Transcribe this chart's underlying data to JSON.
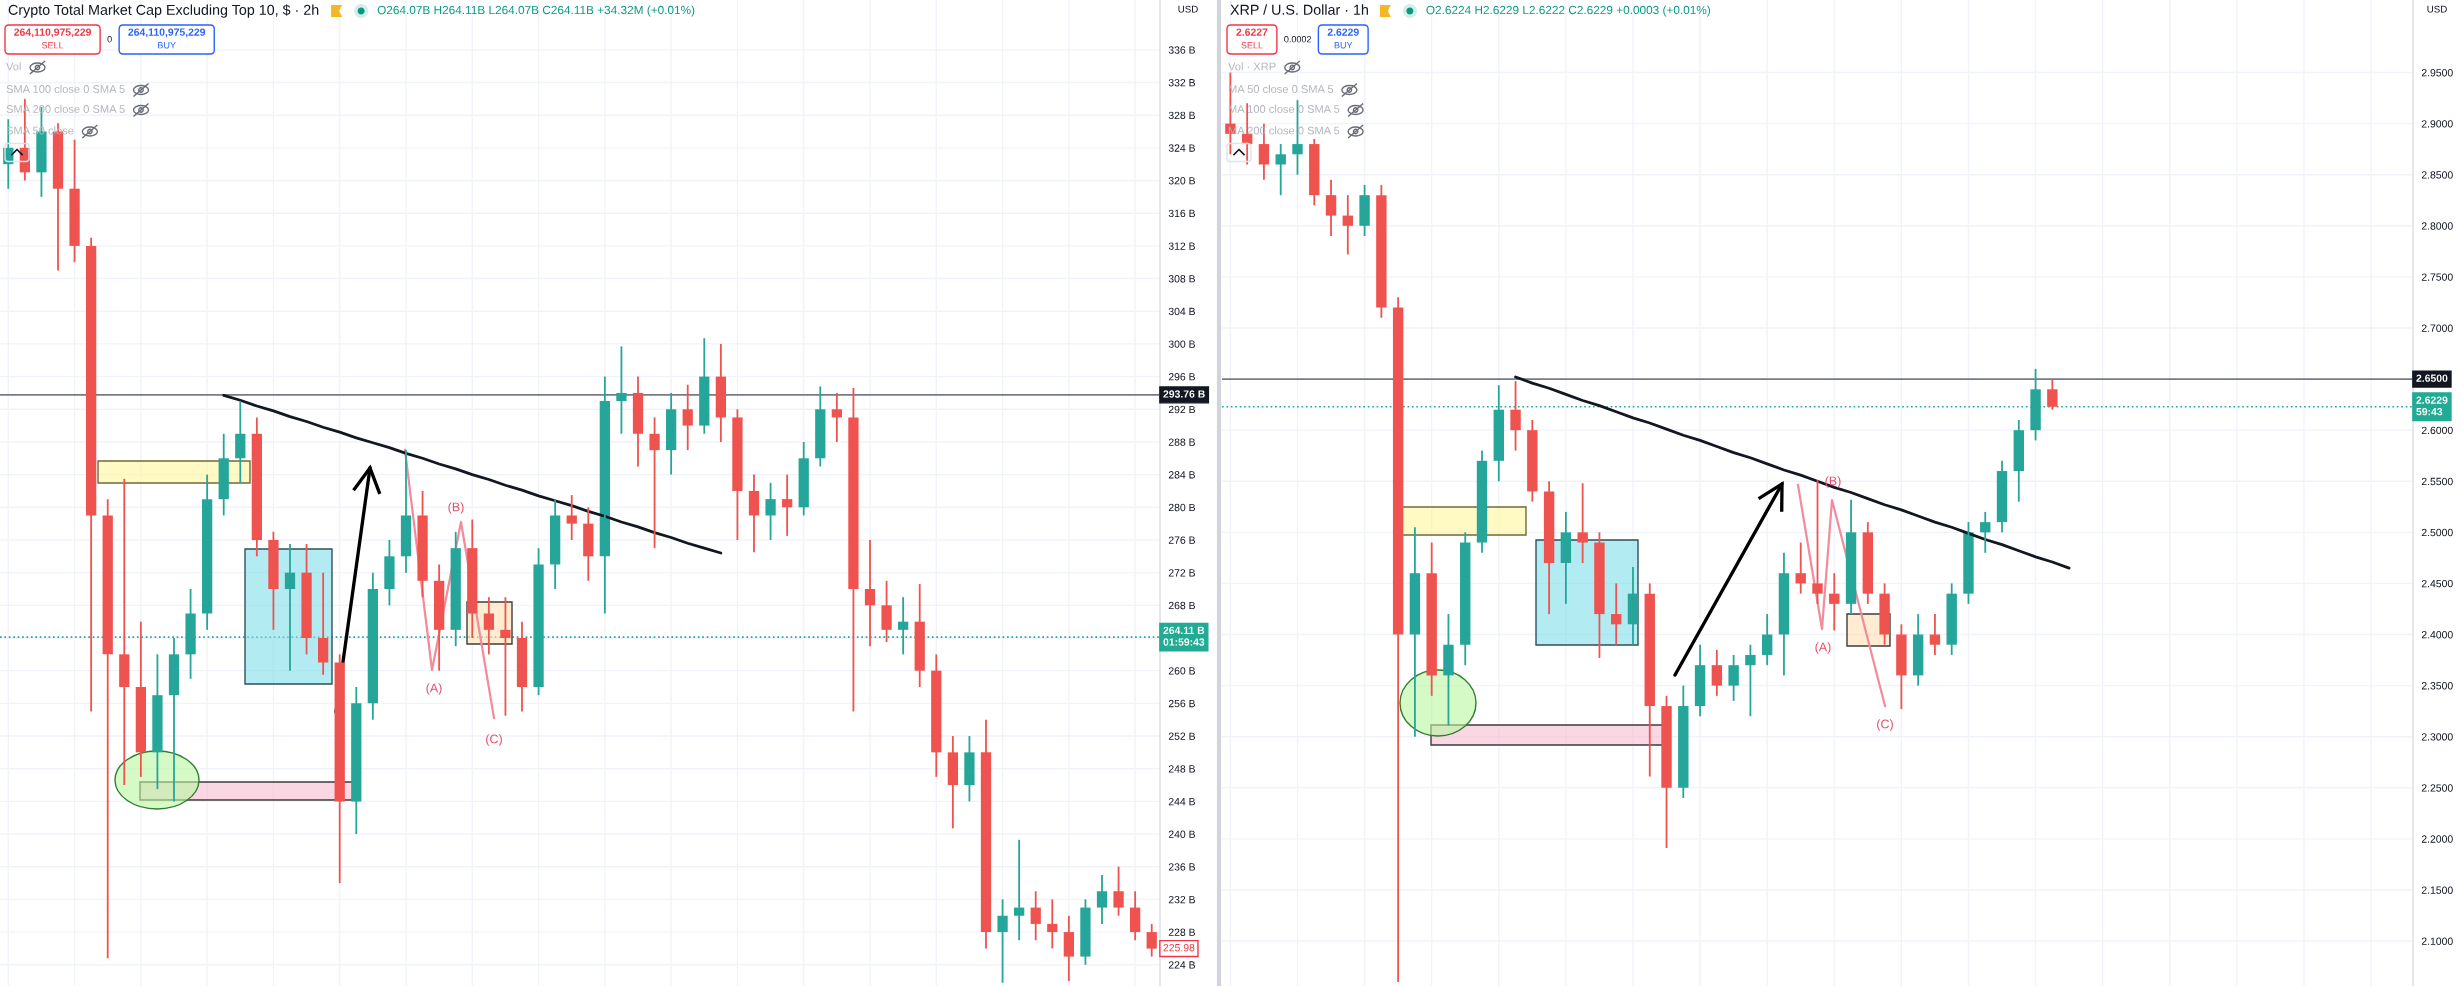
{
  "chart_data": [
    {
      "type": "candlestick",
      "title": "Crypto Total Market Cap Excluding Top 10, $ · 2h",
      "subtitle": "O264.07B H264.11B L264.07B C264.11B +34.32M (+0.01%)",
      "categories": [
        null,
        null,
        null,
        null,
        null,
        null,
        null,
        null,
        null,
        null,
        null,
        null,
        null,
        null,
        null,
        null,
        null,
        null,
        null,
        null,
        null,
        null,
        null,
        null,
        null,
        null,
        null,
        null,
        null,
        null,
        null,
        null,
        null,
        null,
        null,
        null,
        null,
        null,
        null,
        null,
        null,
        null,
        null,
        null,
        null,
        null,
        null,
        null,
        null,
        null,
        null,
        null,
        null,
        null,
        null,
        null,
        null,
        null,
        null,
        null,
        null,
        null,
        null,
        null,
        null,
        null,
        null,
        null,
        null,
        null
      ],
      "ohlc": [
        [
          322,
          327.5,
          319,
          324
        ],
        [
          324,
          330,
          320,
          321
        ],
        [
          321,
          329,
          318,
          326
        ],
        [
          326,
          327,
          309,
          319
        ],
        [
          319,
          325,
          310,
          312
        ],
        [
          312,
          313,
          255,
          279
        ],
        [
          279,
          281,
          224.8,
          262
        ],
        [
          262,
          283.5,
          246,
          258
        ],
        [
          258,
          266,
          247,
          250
        ],
        [
          250,
          262,
          245.5,
          257
        ],
        [
          257,
          264,
          244,
          262
        ],
        [
          262,
          270,
          259,
          267
        ],
        [
          267,
          284,
          265,
          281
        ],
        [
          281,
          289,
          279,
          286
        ],
        [
          286,
          293,
          283,
          289
        ],
        [
          289,
          291,
          274,
          276
        ],
        [
          276,
          277,
          265,
          270
        ],
        [
          270,
          275.5,
          260,
          272
        ],
        [
          272,
          275.5,
          262,
          264
        ],
        [
          264,
          272,
          259.5,
          261
        ],
        [
          261,
          262,
          234,
          244
        ],
        [
          244,
          258,
          240,
          256
        ],
        [
          256,
          272,
          254,
          270
        ],
        [
          270,
          276,
          268,
          274
        ],
        [
          274,
          287,
          272,
          279
        ],
        [
          279,
          282,
          269,
          271
        ],
        [
          271,
          273,
          260,
          265
        ],
        [
          265,
          277,
          263,
          275
        ],
        [
          275,
          278.5,
          264,
          267
        ],
        [
          267,
          269,
          262,
          265
        ],
        [
          265,
          269,
          254.5,
          264
        ],
        [
          264,
          266,
          255,
          258
        ],
        [
          258,
          275,
          257,
          273
        ],
        [
          273,
          281,
          270,
          279
        ],
        [
          279,
          281.5,
          276,
          278
        ],
        [
          278,
          280,
          271,
          274
        ],
        [
          274,
          296,
          267,
          293
        ],
        [
          293,
          299.7,
          289,
          294
        ],
        [
          294,
          296,
          285,
          289
        ],
        [
          289,
          291,
          275,
          287
        ],
        [
          287,
          294,
          284,
          292
        ],
        [
          292,
          295,
          287,
          290
        ],
        [
          290,
          300.7,
          289,
          296
        ],
        [
          296,
          300,
          288,
          291
        ],
        [
          291,
          292,
          276,
          282
        ],
        [
          282,
          284,
          274.5,
          279
        ],
        [
          279,
          283,
          276,
          281
        ],
        [
          281,
          284,
          276.5,
          280
        ],
        [
          280,
          288,
          279,
          286
        ],
        [
          286,
          294.8,
          285,
          292
        ],
        [
          292,
          294,
          288,
          291
        ],
        [
          291,
          294.6,
          255,
          270
        ],
        [
          270,
          276,
          263,
          268
        ],
        [
          268,
          271,
          263.5,
          265
        ],
        [
          265,
          269,
          262,
          266
        ],
        [
          266,
          270.6,
          258,
          260
        ],
        [
          260,
          262,
          247,
          250
        ],
        [
          250,
          252,
          240.7,
          246
        ],
        [
          246,
          252,
          244,
          250
        ],
        [
          250,
          254,
          226,
          228
        ],
        [
          228,
          232,
          221.8,
          230
        ],
        [
          230,
          239.3,
          227,
          231
        ],
        [
          231,
          233,
          227,
          229
        ],
        [
          229,
          232,
          226,
          228
        ],
        [
          228,
          230,
          222,
          225
        ],
        [
          225,
          232,
          224,
          231
        ],
        [
          231,
          235,
          229,
          233
        ],
        [
          233,
          236,
          230,
          231
        ],
        [
          231,
          233,
          227,
          228
        ],
        [
          228,
          229,
          225,
          225.98
        ]
      ],
      "colors": [
        "#26a69a",
        "#ef5350",
        "#26a69a",
        "#ef5350",
        "#ef5350",
        "#ef5350",
        "#ef5350",
        "#ef5350",
        "#ef5350",
        "#26a69a",
        "#26a69a",
        "#26a69a",
        "#26a69a",
        "#26a69a",
        "#26a69a",
        "#ef5350",
        "#ef5350",
        "#26a69a",
        "#ef5350",
        "#ef5350",
        "#ef5350",
        "#26a69a",
        "#26a69a",
        "#26a69a",
        "#26a69a",
        "#ef5350",
        "#ef5350",
        "#26a69a",
        "#ef5350",
        "#ef5350",
        "#ef5350",
        "#ef5350",
        "#26a69a",
        "#26a69a",
        "#ef5350",
        "#ef5350",
        "#26a69a",
        "#26a69a",
        "#ef5350",
        "#ef5350",
        "#26a69a",
        "#ef5350",
        "#26a69a",
        "#ef5350",
        "#ef5350",
        "#ef5350",
        "#26a69a",
        "#ef5350",
        "#26a69a",
        "#26a69a",
        "#ef5350",
        "#ef5350",
        "#ef5350",
        "#ef5350",
        "#26a69a",
        "#ef5350",
        "#ef5350",
        "#ef5350",
        "#26a69a",
        "#ef5350",
        "#26a69a",
        "#26a69a",
        "#ef5350",
        "#ef5350",
        "#ef5350",
        "#26a69a",
        "#26a69a",
        "#ef5350",
        "#ef5350",
        "#ef5350"
      ],
      "series": [
        {
          "type": "line",
          "color": "#131722",
          "values": [
            null,
            null,
            null,
            null,
            null,
            null,
            null,
            null,
            null,
            null,
            null,
            null,
            null,
            293.7,
            293.1,
            292.4,
            291.8,
            291.1,
            290.5,
            289.8,
            289.2,
            288.5,
            287.9,
            287.3,
            286.6,
            286.0,
            285.3,
            284.7,
            284.0,
            283.4,
            282.7,
            282.1,
            281.4,
            280.8,
            280.2,
            279.5,
            278.9,
            278.2,
            277.6,
            276.9,
            276.3,
            275.6,
            275.0,
            274.4,
            null,
            null,
            null,
            null,
            null,
            null,
            null,
            null,
            null,
            null,
            null,
            null,
            null,
            null,
            null,
            null,
            null,
            null,
            null,
            null,
            null,
            null,
            null,
            null,
            null,
            null
          ]
        }
      ],
      "ylim": [
        221.4,
        342.1
      ],
      "yticks": [
        {
          "value": 224,
          "label": "224 B"
        },
        {
          "value": 228,
          "label": "228 B"
        },
        {
          "value": 232,
          "label": "232 B"
        },
        {
          "value": 236,
          "label": "236 B"
        },
        {
          "value": 240,
          "label": "240 B"
        },
        {
          "value": 244,
          "label": "244 B"
        },
        {
          "value": 248,
          "label": "248 B"
        },
        {
          "value": 252,
          "label": "252 B"
        },
        {
          "value": 256,
          "label": "256 B"
        },
        {
          "value": 260,
          "label": "260 B"
        },
        {
          "value": 264,
          "label": null
        },
        {
          "value": 268,
          "label": "268 B"
        },
        {
          "value": 272,
          "label": "272 B"
        },
        {
          "value": 276,
          "label": "276 B"
        },
        {
          "value": 280,
          "label": "280 B"
        },
        {
          "value": 284,
          "label": "284 B"
        },
        {
          "value": 288,
          "label": "288 B"
        },
        {
          "value": 292,
          "label": "292 B"
        },
        {
          "value": 296,
          "label": "296 B"
        },
        {
          "value": 300,
          "label": "300 B"
        },
        {
          "value": 304,
          "label": "304 B"
        },
        {
          "value": 308,
          "label": "308 B"
        },
        {
          "value": 312,
          "label": "312 B"
        },
        {
          "value": 316,
          "label": "316 B"
        },
        {
          "value": 320,
          "label": "320 B"
        },
        {
          "value": 324,
          "label": "324 B"
        },
        {
          "value": 328,
          "label": "328 B"
        },
        {
          "value": 332,
          "label": "332 B"
        },
        {
          "value": 336,
          "label": "336 B"
        }
      ],
      "grid": true,
      "tick_labels": "y",
      "ref_lines": [
        {
          "axis": "y",
          "value": 293.76,
          "label": "293.76 B",
          "color": "#787b86",
          "line_style": "solid"
        },
        {
          "axis": "y",
          "value": 264.11,
          "label": "264.11 B\n01:59:43",
          "color": "#22ab94",
          "line_style": "dotted"
        }
      ],
      "annotations": [
        "264,110,975,229",
        "SELL",
        "0",
        "264,110,975,229",
        "BUY",
        "Vol",
        "SMA 100 close 0 SMA 5",
        "SMA 200 close 0 SMA 5",
        "SMA 50 close",
        "USD",
        "(A)",
        "(B)",
        "(C)",
        {
          "text": "225.98",
          "y": 225.98
        }
      ]
    },
    {
      "type": "candlestick",
      "title": "XRP / U.S. Dollar · 1h",
      "subtitle": "O2.6224 H2.6229 L2.6222 C2.6229 +0.0003 (+0.01%)",
      "categories": [
        null,
        null,
        null,
        null,
        null,
        null,
        null,
        null,
        null,
        null,
        null,
        null,
        null,
        null,
        null,
        null,
        null,
        null,
        null,
        null,
        null,
        null,
        null,
        null,
        null,
        null,
        null,
        null,
        null,
        null,
        null,
        null,
        null,
        null,
        null,
        null,
        null,
        null,
        null,
        null,
        null,
        null,
        null,
        null,
        null,
        null,
        null,
        null,
        null,
        null,
        null,
        null,
        null,
        null,
        null,
        null,
        null,
        null,
        null,
        null,
        null,
        null,
        null,
        null,
        null,
        null,
        null,
        null,
        null,
        null,
        null
      ],
      "ohlc": [
        [
          2.9,
          2.95,
          2.87,
          2.89
        ],
        [
          2.89,
          2.92,
          2.86,
          2.88
        ],
        [
          2.88,
          2.9,
          2.845,
          2.86
        ],
        [
          2.86,
          2.88,
          2.83,
          2.87
        ],
        [
          2.87,
          2.923,
          2.85,
          2.88
        ],
        [
          2.88,
          2.885,
          2.82,
          2.83
        ],
        [
          2.83,
          2.845,
          2.79,
          2.81
        ],
        [
          2.81,
          2.83,
          2.772,
          2.8
        ],
        [
          2.8,
          2.84,
          2.79,
          2.83
        ],
        [
          2.83,
          2.84,
          2.71,
          2.72
        ],
        [
          2.72,
          2.73,
          2.06,
          2.4
        ],
        [
          2.4,
          2.505,
          2.3,
          2.46
        ],
        [
          2.46,
          2.49,
          2.34,
          2.36
        ],
        [
          2.36,
          2.42,
          2.311,
          2.39
        ],
        [
          2.39,
          2.5,
          2.37,
          2.49
        ],
        [
          2.49,
          2.58,
          2.48,
          2.57
        ],
        [
          2.57,
          2.644,
          2.55,
          2.62
        ],
        [
          2.62,
          2.648,
          2.58,
          2.6
        ],
        [
          2.6,
          2.61,
          2.53,
          2.54
        ],
        [
          2.54,
          2.55,
          2.42,
          2.47
        ],
        [
          2.47,
          2.52,
          2.43,
          2.5
        ],
        [
          2.5,
          2.548,
          2.47,
          2.49
        ],
        [
          2.49,
          2.5,
          2.377,
          2.42
        ],
        [
          2.42,
          2.45,
          2.39,
          2.41
        ],
        [
          2.41,
          2.466,
          2.39,
          2.44
        ],
        [
          2.44,
          2.45,
          2.261,
          2.33
        ],
        [
          2.33,
          2.34,
          2.191,
          2.25
        ],
        [
          2.25,
          2.35,
          2.24,
          2.33
        ],
        [
          2.33,
          2.39,
          2.32,
          2.37
        ],
        [
          2.37,
          2.385,
          2.34,
          2.35
        ],
        [
          2.35,
          2.38,
          2.335,
          2.37
        ],
        [
          2.37,
          2.39,
          2.32,
          2.38
        ],
        [
          2.38,
          2.42,
          2.37,
          2.4
        ],
        [
          2.4,
          2.48,
          2.36,
          2.46
        ],
        [
          2.46,
          2.49,
          2.44,
          2.45
        ],
        [
          2.45,
          2.551,
          2.43,
          2.44
        ],
        [
          2.44,
          2.46,
          2.404,
          2.43
        ],
        [
          2.43,
          2.532,
          2.42,
          2.5
        ],
        [
          2.5,
          2.51,
          2.43,
          2.44
        ],
        [
          2.44,
          2.45,
          2.39,
          2.4
        ],
        [
          2.4,
          2.41,
          2.327,
          2.36
        ],
        [
          2.36,
          2.42,
          2.35,
          2.4
        ],
        [
          2.4,
          2.42,
          2.38,
          2.39
        ],
        [
          2.39,
          2.45,
          2.38,
          2.44
        ],
        [
          2.44,
          2.51,
          2.43,
          2.5
        ],
        [
          2.5,
          2.52,
          2.48,
          2.51
        ],
        [
          2.51,
          2.57,
          2.5,
          2.56
        ],
        [
          2.56,
          2.61,
          2.53,
          2.6
        ],
        [
          2.6,
          2.66,
          2.59,
          2.64
        ],
        [
          2.64,
          2.65,
          2.62,
          2.6229
        ],
        null,
        null,
        null,
        null,
        null,
        null,
        null,
        null,
        null,
        null,
        null,
        null,
        null,
        null,
        null,
        null,
        null,
        null,
        null,
        null,
        null
      ],
      "colors": [
        "#ef5350",
        "#ef5350",
        "#ef5350",
        "#26a69a",
        "#26a69a",
        "#ef5350",
        "#ef5350",
        "#ef5350",
        "#26a69a",
        "#ef5350",
        "#ef5350",
        "#26a69a",
        "#ef5350",
        "#26a69a",
        "#26a69a",
        "#26a69a",
        "#26a69a",
        "#ef5350",
        "#ef5350",
        "#ef5350",
        "#26a69a",
        "#ef5350",
        "#ef5350",
        "#ef5350",
        "#26a69a",
        "#ef5350",
        "#ef5350",
        "#26a69a",
        "#26a69a",
        "#ef5350",
        "#26a69a",
        "#26a69a",
        "#26a69a",
        "#26a69a",
        "#ef5350",
        "#ef5350",
        "#ef5350",
        "#26a69a",
        "#ef5350",
        "#ef5350",
        "#ef5350",
        "#26a69a",
        "#ef5350",
        "#26a69a",
        "#26a69a",
        "#26a69a",
        "#26a69a",
        "#26a69a",
        "#26a69a",
        "#ef5350",
        null,
        null,
        null,
        null,
        null,
        null,
        null,
        null,
        null,
        null,
        null,
        null,
        null,
        null,
        null,
        null,
        null,
        null,
        null,
        null,
        null
      ],
      "series": [
        {
          "type": "line",
          "color": "#131722",
          "values": [
            null,
            null,
            null,
            null,
            null,
            null,
            null,
            null,
            null,
            null,
            null,
            null,
            null,
            null,
            null,
            null,
            null,
            2.652,
            2.646,
            2.641,
            2.635,
            2.629,
            2.624,
            2.618,
            2.612,
            2.607,
            2.601,
            2.595,
            2.59,
            2.584,
            2.578,
            2.573,
            2.567,
            2.561,
            2.556,
            2.55,
            2.544,
            2.539,
            2.533,
            2.527,
            2.522,
            2.516,
            2.51,
            2.505,
            2.499,
            2.493,
            2.488,
            2.482,
            2.476,
            2.471,
            2.465,
            null,
            null,
            null,
            null,
            null,
            null,
            null,
            null,
            null,
            null,
            null,
            null,
            null,
            null,
            null,
            null,
            null,
            null,
            null,
            null
          ]
        }
      ],
      "ylim": [
        2.056,
        3.021
      ],
      "yticks": [
        {
          "value": 2.1,
          "label": "2.1000"
        },
        {
          "value": 2.15,
          "label": "2.1500"
        },
        {
          "value": 2.2,
          "label": "2.2000"
        },
        {
          "value": 2.25,
          "label": "2.2500"
        },
        {
          "value": 2.3,
          "label": "2.3000"
        },
        {
          "value": 2.35,
          "label": "2.3500"
        },
        {
          "value": 2.4,
          "label": "2.4000"
        },
        {
          "value": 2.45,
          "label": "2.4500"
        },
        {
          "value": 2.5,
          "label": "2.5000"
        },
        {
          "value": 2.55,
          "label": "2.5500"
        },
        {
          "value": 2.6,
          "label": "2.6000"
        },
        {
          "value": 2.65,
          "label": null
        },
        {
          "value": 2.7,
          "label": "2.7000"
        },
        {
          "value": 2.75,
          "label": "2.7500"
        },
        {
          "value": 2.8,
          "label": "2.8000"
        },
        {
          "value": 2.85,
          "label": "2.8500"
        },
        {
          "value": 2.9,
          "label": "2.9000"
        },
        {
          "value": 2.95,
          "label": "2.9500"
        }
      ],
      "grid": true,
      "tick_labels": "y",
      "ref_lines": [
        {
          "axis": "y",
          "value": 2.65,
          "label": "2.6500",
          "color": "#787b86",
          "line_style": "solid"
        },
        {
          "axis": "y",
          "value": 2.6229,
          "label": "2.6229\n59:43",
          "color": "#22ab94",
          "line_style": "dotted"
        }
      ],
      "annotations": [
        "2.6227",
        "SELL",
        "0.0002",
        "2.6229",
        "BUY",
        "Vol · XRP",
        "MA 50 close 0 SMA 5",
        "MA 100 close 0 SMA 5",
        "MA 200 close 0 SMA 5",
        "USD",
        "(A)",
        "(B)",
        "(C)"
      ]
    }
  ]
}
